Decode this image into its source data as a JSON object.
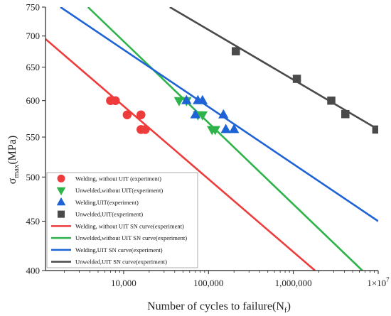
{
  "chart_data": {
    "type": "scatter",
    "xlabel": "Number of cycles to failure(N",
    "xlabel_sub": "f",
    "xlabel_close": ")",
    "ylabel": "σ",
    "ylabel_sub": "max",
    "ylabel_rest": "(MPa)",
    "x_scale": "log",
    "y_scale": "log",
    "xlim": [
      1200,
      10000000
    ],
    "ylim": [
      400,
      750
    ],
    "x_ticks": [
      {
        "value": 10000,
        "label": "10,000"
      },
      {
        "value": 100000,
        "label": "100,000"
      },
      {
        "value": 1000000,
        "label": "1,000,000"
      },
      {
        "value": 10000000,
        "label": "1×10",
        "sup": "7"
      }
    ],
    "y_ticks": [
      {
        "value": 400,
        "label": "400"
      },
      {
        "value": 450,
        "label": "450"
      },
      {
        "value": 500,
        "label": "500"
      },
      {
        "value": 550,
        "label": "550"
      },
      {
        "value": 600,
        "label": "600"
      },
      {
        "value": 650,
        "label": "650"
      },
      {
        "value": 700,
        "label": "700"
      },
      {
        "value": 750,
        "label": "750"
      }
    ],
    "legend_position": "bottom-left",
    "series": [
      {
        "name": "Welding, without UIT (experiment)",
        "marker": "circle",
        "color": "#ee3b3b",
        "points": [
          [
            7000,
            600
          ],
          [
            8000,
            600
          ],
          [
            11000,
            580
          ],
          [
            16000,
            580
          ],
          [
            16000,
            560
          ],
          [
            18000,
            560
          ]
        ]
      },
      {
        "name": "Unwelded,without UIT(experiment)",
        "marker": "triangle-down",
        "color": "#2db34a",
        "points": [
          [
            45000,
            600
          ],
          [
            55000,
            600
          ],
          [
            75000,
            580
          ],
          [
            85000,
            580
          ],
          [
            110000,
            560
          ],
          [
            120000,
            560
          ]
        ]
      },
      {
        "name": "Welding,UIT(experiment)",
        "marker": "triangle-up",
        "color": "#1e63d6",
        "points": [
          [
            55000,
            600
          ],
          [
            75000,
            600
          ],
          [
            85000,
            600
          ],
          [
            70000,
            580
          ],
          [
            150000,
            580
          ],
          [
            160000,
            560
          ],
          [
            200000,
            560
          ]
        ]
      },
      {
        "name": "Unwelded,UIT(experiment)",
        "marker": "square",
        "color": "#4a4a4a",
        "points": [
          [
            210000,
            675
          ],
          [
            1100000,
            632
          ],
          [
            2800000,
            600
          ],
          [
            4100000,
            581
          ],
          [
            9500000,
            560
          ]
        ]
      },
      {
        "name": "Welding, without UIT SN curve(experiment)",
        "marker": "line",
        "color": "#ee3b3b",
        "line": [
          [
            1200,
            695
          ],
          [
            1800000,
            400
          ]
        ]
      },
      {
        "name": "Unwelded,without UIT SN curve(experiment)",
        "marker": "line",
        "color": "#2db34a",
        "line": [
          [
            3800,
            750
          ],
          [
            6500000,
            400
          ]
        ]
      },
      {
        "name": "Welding,UIT SN curve(experiment)",
        "marker": "line",
        "color": "#1e63d6",
        "line": [
          [
            1800,
            750
          ],
          [
            10000000,
            450
          ]
        ]
      },
      {
        "name": "Unwelded,UIT SN curve(experiment)",
        "marker": "line",
        "color": "#4a4a4a",
        "line": [
          [
            35000,
            750
          ],
          [
            10000000,
            560
          ]
        ]
      }
    ]
  }
}
